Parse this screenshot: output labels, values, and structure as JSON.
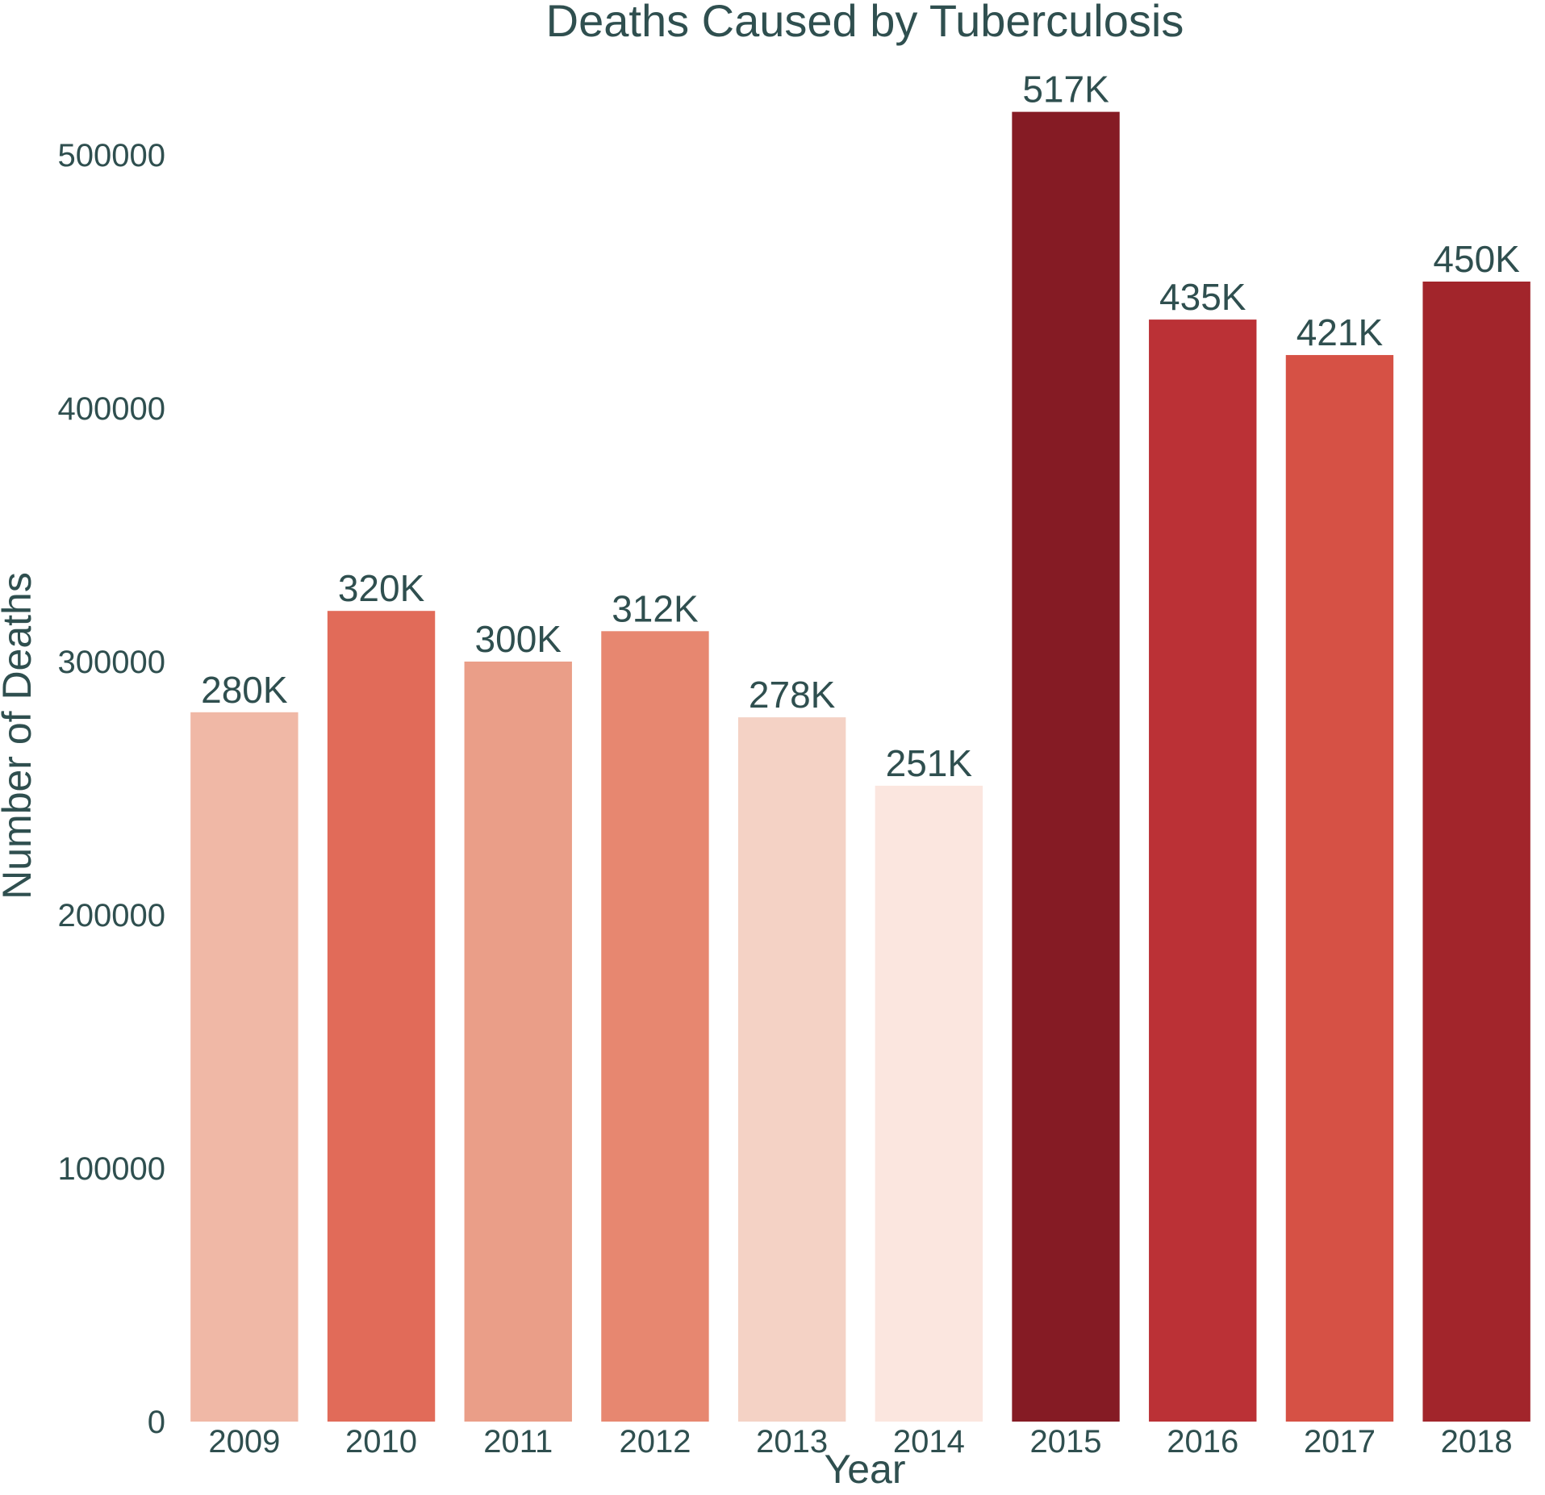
{
  "chart_data": {
    "type": "bar",
    "title": "Deaths Caused by Tuberculosis",
    "xlabel": "Year",
    "ylabel": "Number of Deaths",
    "categories": [
      "2009",
      "2010",
      "2011",
      "2012",
      "2013",
      "2014",
      "2015",
      "2016",
      "2017",
      "2018"
    ],
    "values": [
      280000,
      320000,
      300000,
      312000,
      278000,
      251000,
      517000,
      435000,
      421000,
      450000
    ],
    "data_labels": [
      "280K",
      "320K",
      "300K",
      "312K",
      "278K",
      "251K",
      "517K",
      "435K",
      "421K",
      "450K"
    ],
    "colors": [
      "#f0b8a6",
      "#e16b59",
      "#ea9e88",
      "#e78770",
      "#f4d2c5",
      "#fbe6df",
      "#851b24",
      "#bb3136",
      "#d65145",
      "#a2252b"
    ],
    "yticks": [
      0,
      100000,
      200000,
      300000,
      400000,
      500000
    ],
    "ylim": [
      0,
      543000
    ],
    "grid": false,
    "legend": "none"
  }
}
